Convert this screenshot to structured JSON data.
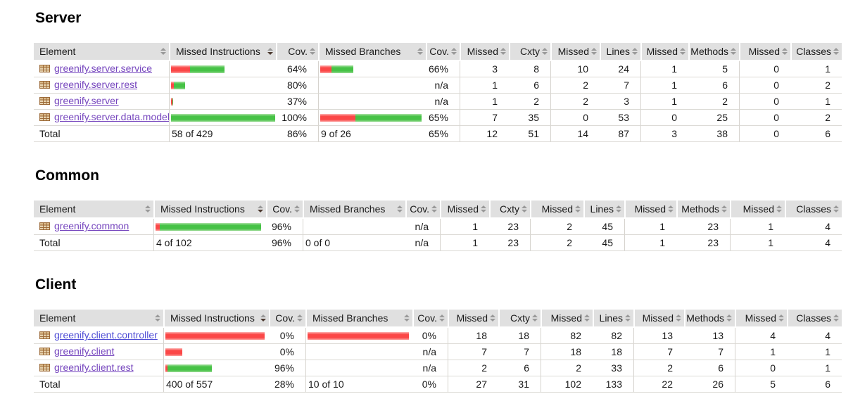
{
  "colors": {
    "red_bar": "#fb4747",
    "green_bar": "#46c246",
    "header_bg": "#e0e0e0",
    "link_visited": "#7646be",
    "link_fresh": "#4e4cd5",
    "sort_arrow": "#999999",
    "sort_arrow_active": "#4b382e",
    "text": "#1a1a1a"
  },
  "report": {
    "headers": [
      {
        "label": "Element",
        "align": "left"
      },
      {
        "label": "Missed Instructions",
        "align": "left",
        "sorted": "desc"
      },
      {
        "label": "Cov.",
        "align": "right"
      },
      {
        "label": "Missed Branches",
        "align": "left"
      },
      {
        "label": "Cov.",
        "align": "right"
      },
      {
        "label": "Missed",
        "align": "right"
      },
      {
        "label": "Cxty",
        "align": "right"
      },
      {
        "label": "Missed",
        "align": "right"
      },
      {
        "label": "Lines",
        "align": "right"
      },
      {
        "label": "Missed",
        "align": "right"
      },
      {
        "label": "Methods",
        "align": "right"
      },
      {
        "label": "Missed",
        "align": "right"
      },
      {
        "label": "Classes",
        "align": "right"
      }
    ],
    "sections": [
      {
        "title": "Server",
        "rows": [
          {
            "name": "greenify.server.service",
            "link": "visited",
            "instr_bar": {
              "red": 27,
              "green": 49
            },
            "instr_cov": "64%",
            "branch_bar": {
              "red": 16,
              "green": 31
            },
            "branch_cov": "66%",
            "counters": [
              "3",
              "8",
              "10",
              "24",
              "1",
              "5",
              "0",
              "1"
            ]
          },
          {
            "name": "greenify.server.rest",
            "link": "visited",
            "instr_bar": {
              "red": 4,
              "green": 16
            },
            "instr_cov": "80%",
            "branch_bar": {
              "red": 0,
              "green": 0
            },
            "branch_cov": "n/a",
            "counters": [
              "1",
              "6",
              "2",
              "7",
              "1",
              "6",
              "0",
              "2"
            ]
          },
          {
            "name": "greenify.server",
            "link": "visited",
            "instr_bar": {
              "red": 2,
              "green": 1
            },
            "instr_cov": "37%",
            "branch_bar": {
              "red": 0,
              "green": 0
            },
            "branch_cov": "n/a",
            "counters": [
              "1",
              "2",
              "2",
              "3",
              "1",
              "2",
              "0",
              "1"
            ]
          },
          {
            "name": "greenify.server.data.model",
            "link": "visited",
            "instr_bar": {
              "red": 0,
              "green": 148
            },
            "instr_cov": "100%",
            "branch_bar": {
              "red": 50,
              "green": 94
            },
            "branch_cov": "65%",
            "counters": [
              "7",
              "35",
              "0",
              "53",
              "0",
              "25",
              "0",
              "2"
            ]
          }
        ],
        "total": {
          "label": "Total",
          "instr_text": "58 of 429",
          "instr_cov": "86%",
          "branch_text": "9 of 26",
          "branch_cov": "65%",
          "counters": [
            "12",
            "51",
            "14",
            "87",
            "3",
            "38",
            "0",
            "6"
          ]
        }
      },
      {
        "title": "Common",
        "rows": [
          {
            "name": "greenify.common",
            "link": "visited",
            "instr_bar": {
              "red": 6,
              "green": 144
            },
            "instr_cov": "96%",
            "branch_bar": {
              "red": 0,
              "green": 0
            },
            "branch_cov": "n/a",
            "counters": [
              "1",
              "23",
              "2",
              "45",
              "1",
              "23",
              "1",
              "4"
            ]
          }
        ],
        "total": {
          "label": "Total",
          "instr_text": "4 of 102",
          "instr_cov": "96%",
          "branch_text": "0 of 0",
          "branch_cov": "n/a",
          "counters": [
            "1",
            "23",
            "2",
            "45",
            "1",
            "23",
            "1",
            "4"
          ]
        }
      },
      {
        "title": "Client",
        "rows": [
          {
            "name": "greenify.client.controller",
            "link": "fresh",
            "instr_bar": {
              "red": 141,
              "green": 0
            },
            "instr_cov": "0%",
            "branch_bar": {
              "red": 144,
              "green": 0
            },
            "branch_cov": "0%",
            "counters": [
              "18",
              "18",
              "82",
              "82",
              "13",
              "13",
              "4",
              "4"
            ]
          },
          {
            "name": "greenify.client",
            "link": "visited",
            "instr_bar": {
              "red": 24,
              "green": 0
            },
            "instr_cov": "0%",
            "branch_bar": {
              "red": 0,
              "green": 0
            },
            "branch_cov": "n/a",
            "counters": [
              "7",
              "7",
              "18",
              "18",
              "7",
              "7",
              "1",
              "1"
            ]
          },
          {
            "name": "greenify.client.rest",
            "link": "visited",
            "instr_bar": {
              "red": 3,
              "green": 63
            },
            "instr_cov": "96%",
            "branch_bar": {
              "red": 0,
              "green": 0
            },
            "branch_cov": "n/a",
            "counters": [
              "2",
              "6",
              "2",
              "33",
              "2",
              "6",
              "0",
              "1"
            ]
          }
        ],
        "total": {
          "label": "Total",
          "instr_text": "400 of 557",
          "instr_cov": "28%",
          "branch_text": "10 of 10",
          "branch_cov": "0%",
          "counters": [
            "27",
            "31",
            "102",
            "133",
            "22",
            "26",
            "5",
            "6"
          ]
        }
      }
    ]
  }
}
